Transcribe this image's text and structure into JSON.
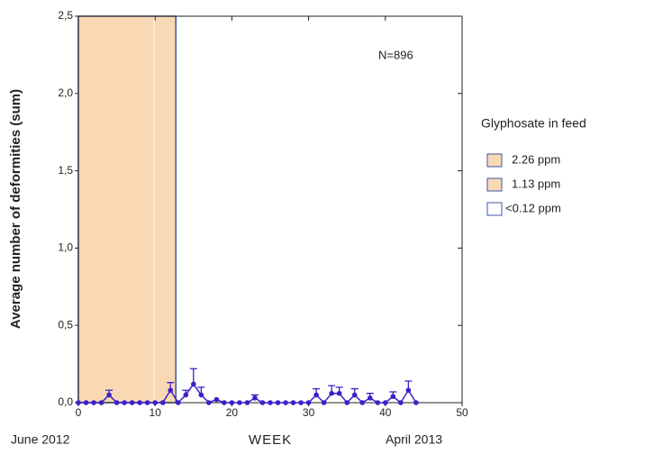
{
  "chart_data": {
    "type": "scatter",
    "y_label": "Average number of deformities (sum)",
    "x_label": "WEEK",
    "x_start_label": "June 2012",
    "x_end_label": "April 2013",
    "annotation": "N=896",
    "legend_title": "Glyphosate in feed",
    "regions": [
      {
        "name": "2.26 ppm",
        "color": "#f8d9b4",
        "edge": "#f8d9b4",
        "range": [
          0,
          9.7
        ]
      },
      {
        "name": "1.13 ppm",
        "color": "#f8d9b4",
        "edge": "#f8d9b4",
        "range": [
          10,
          12.7
        ]
      },
      {
        "name": "<0.12 ppm",
        "color": "none",
        "edge": "#3b56a8",
        "range": [
          0,
          12.7
        ]
      }
    ],
    "series": [
      {
        "color": "#3a20c8",
        "x": [
          0,
          1,
          2,
          3,
          4,
          5,
          6,
          7,
          8,
          9,
          10,
          11,
          12,
          13,
          14,
          15,
          16,
          17,
          18,
          19,
          20,
          21,
          22,
          23,
          24,
          25,
          26,
          27,
          28,
          29,
          30,
          31,
          32,
          33,
          34,
          35,
          36,
          37,
          38,
          39,
          40,
          41,
          42,
          43,
          44
        ],
        "values": [
          0,
          0,
          0,
          0,
          0.05,
          0,
          0,
          0,
          0,
          0,
          0,
          0,
          0.08,
          0,
          0.05,
          0.12,
          0.05,
          0,
          0.02,
          0,
          0,
          0,
          0,
          0.03,
          0,
          0,
          0,
          0,
          0,
          0,
          0,
          0.05,
          0,
          0.06,
          0.06,
          0,
          0.05,
          0,
          0.03,
          0,
          0,
          0.04,
          0,
          0.08,
          0
        ],
        "errors": [
          0,
          0,
          0,
          0,
          0.03,
          0,
          0,
          0,
          0,
          0,
          0,
          0,
          0.05,
          0,
          0.03,
          0.1,
          0.05,
          0,
          0,
          0,
          0,
          0,
          0,
          0.02,
          0,
          0,
          0,
          0,
          0,
          0,
          0,
          0.04,
          0,
          0.05,
          0.04,
          0,
          0.04,
          0,
          0.03,
          0,
          0,
          0.03,
          0,
          0.06,
          0
        ]
      }
    ],
    "xlim": [
      0,
      50
    ],
    "xticks": [
      0,
      10,
      20,
      30,
      40,
      50
    ],
    "ylim": [
      0,
      2.5
    ],
    "yticks": [
      {
        "value": 0,
        "label": "0,0"
      },
      {
        "value": 0.5,
        "label": "0,5"
      },
      {
        "value": 1,
        "label": "1,0"
      },
      {
        "value": 1.5,
        "label": "1,5"
      },
      {
        "value": 2,
        "label": "2,0"
      },
      {
        "value": 2.5,
        "label": "2,5"
      }
    ]
  }
}
